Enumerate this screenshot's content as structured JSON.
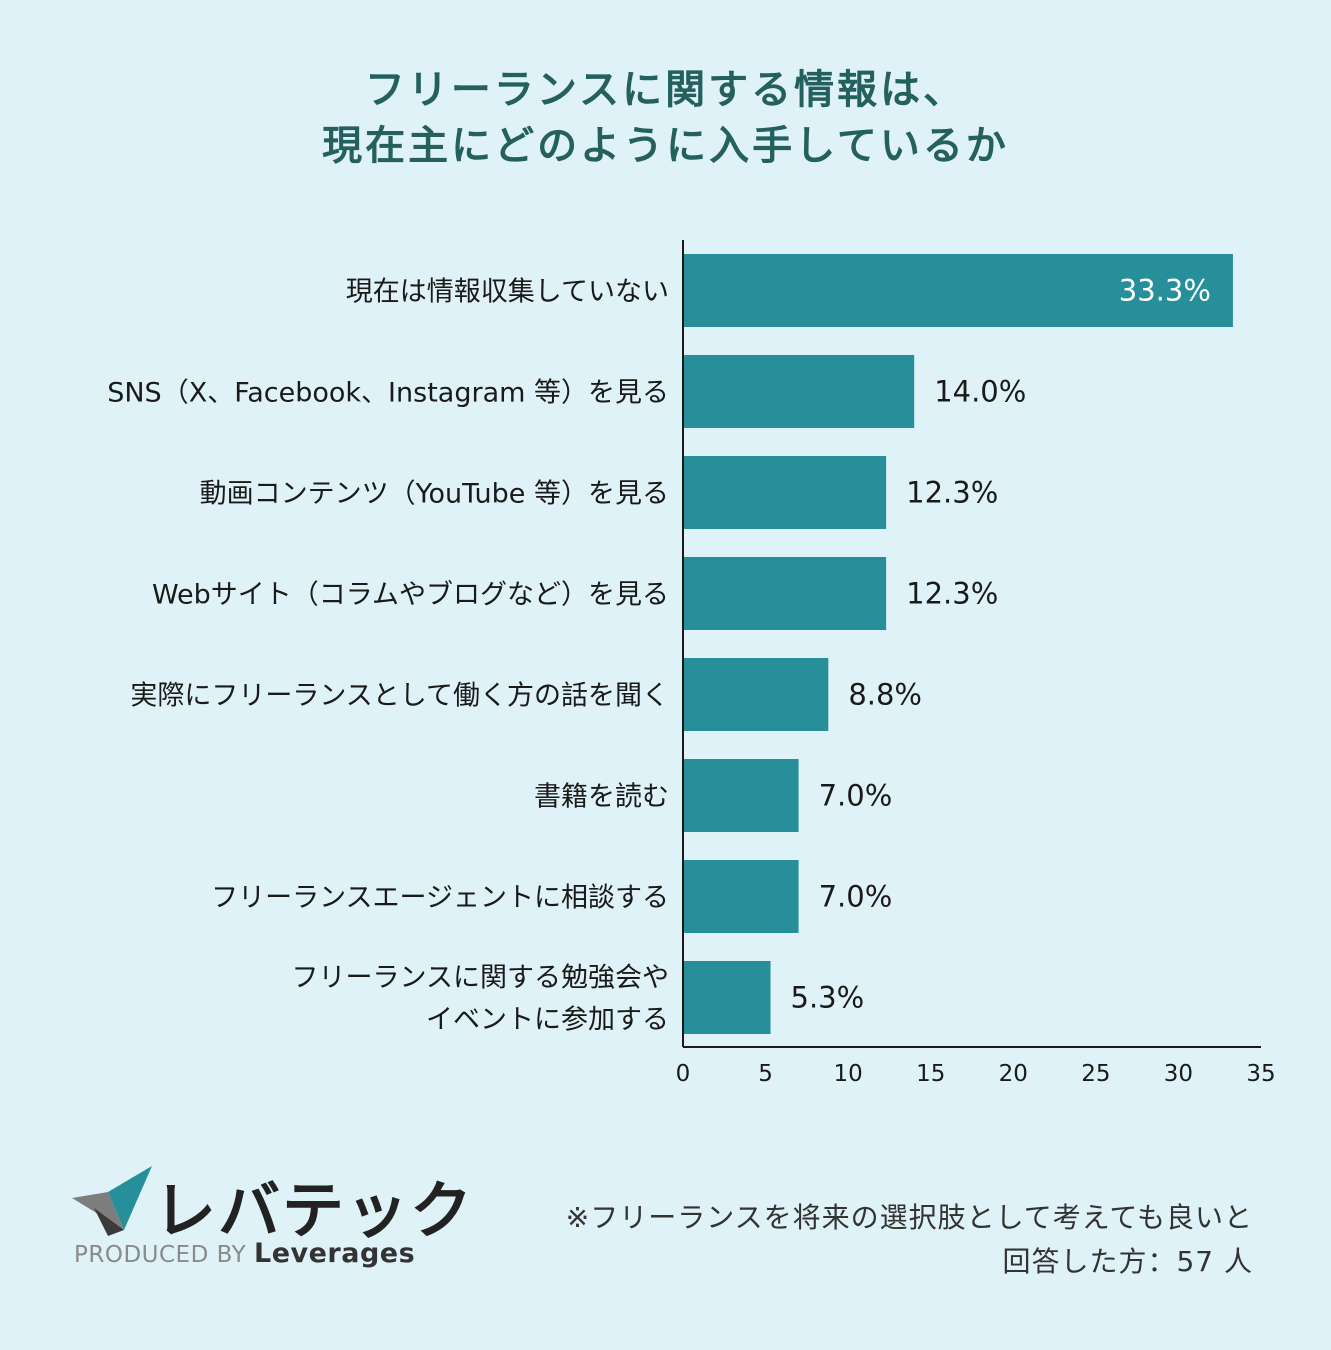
{
  "title": {
    "line1": "フリーランスに関する情報は、",
    "line2": "現在主にどのように入手しているか"
  },
  "chart_data": {
    "type": "bar",
    "orientation": "horizontal",
    "categories": [
      [
        "現在は情報収集していない"
      ],
      [
        "SNS（X、Facebook、Instagram 等）を見る"
      ],
      [
        "動画コンテンツ（YouTube 等）を見る"
      ],
      [
        "Webサイト（コラムやブログなど）を見る"
      ],
      [
        "実際にフリーランスとして働く方の話を聞く"
      ],
      [
        "書籍を読む"
      ],
      [
        "フリーランスエージェントに相談する"
      ],
      [
        "フリーランスに関する勉強会や",
        "イベントに参加する"
      ]
    ],
    "values": [
      33.3,
      14.0,
      12.3,
      12.3,
      8.8,
      7.0,
      7.0,
      5.3
    ],
    "value_labels": [
      "33.3%",
      "14.0%",
      "12.3%",
      "12.3%",
      "8.8%",
      "7.0%",
      "7.0%",
      "5.3%"
    ],
    "xlim": [
      0,
      35
    ],
    "xticks": [
      0,
      5,
      10,
      15,
      20,
      25,
      30,
      35
    ],
    "bar_color": "#268f9a",
    "grid": false
  },
  "logo": {
    "name": "レバテック",
    "produced_by": "PRODUCED BY",
    "brand": "Leverages",
    "colors": [
      "#268f9a",
      "#7d7d7d",
      "#222222"
    ]
  },
  "note": {
    "line1": "※フリーランスを将来の選択肢として考えても良いと",
    "line2": "回答した方：57 人"
  }
}
